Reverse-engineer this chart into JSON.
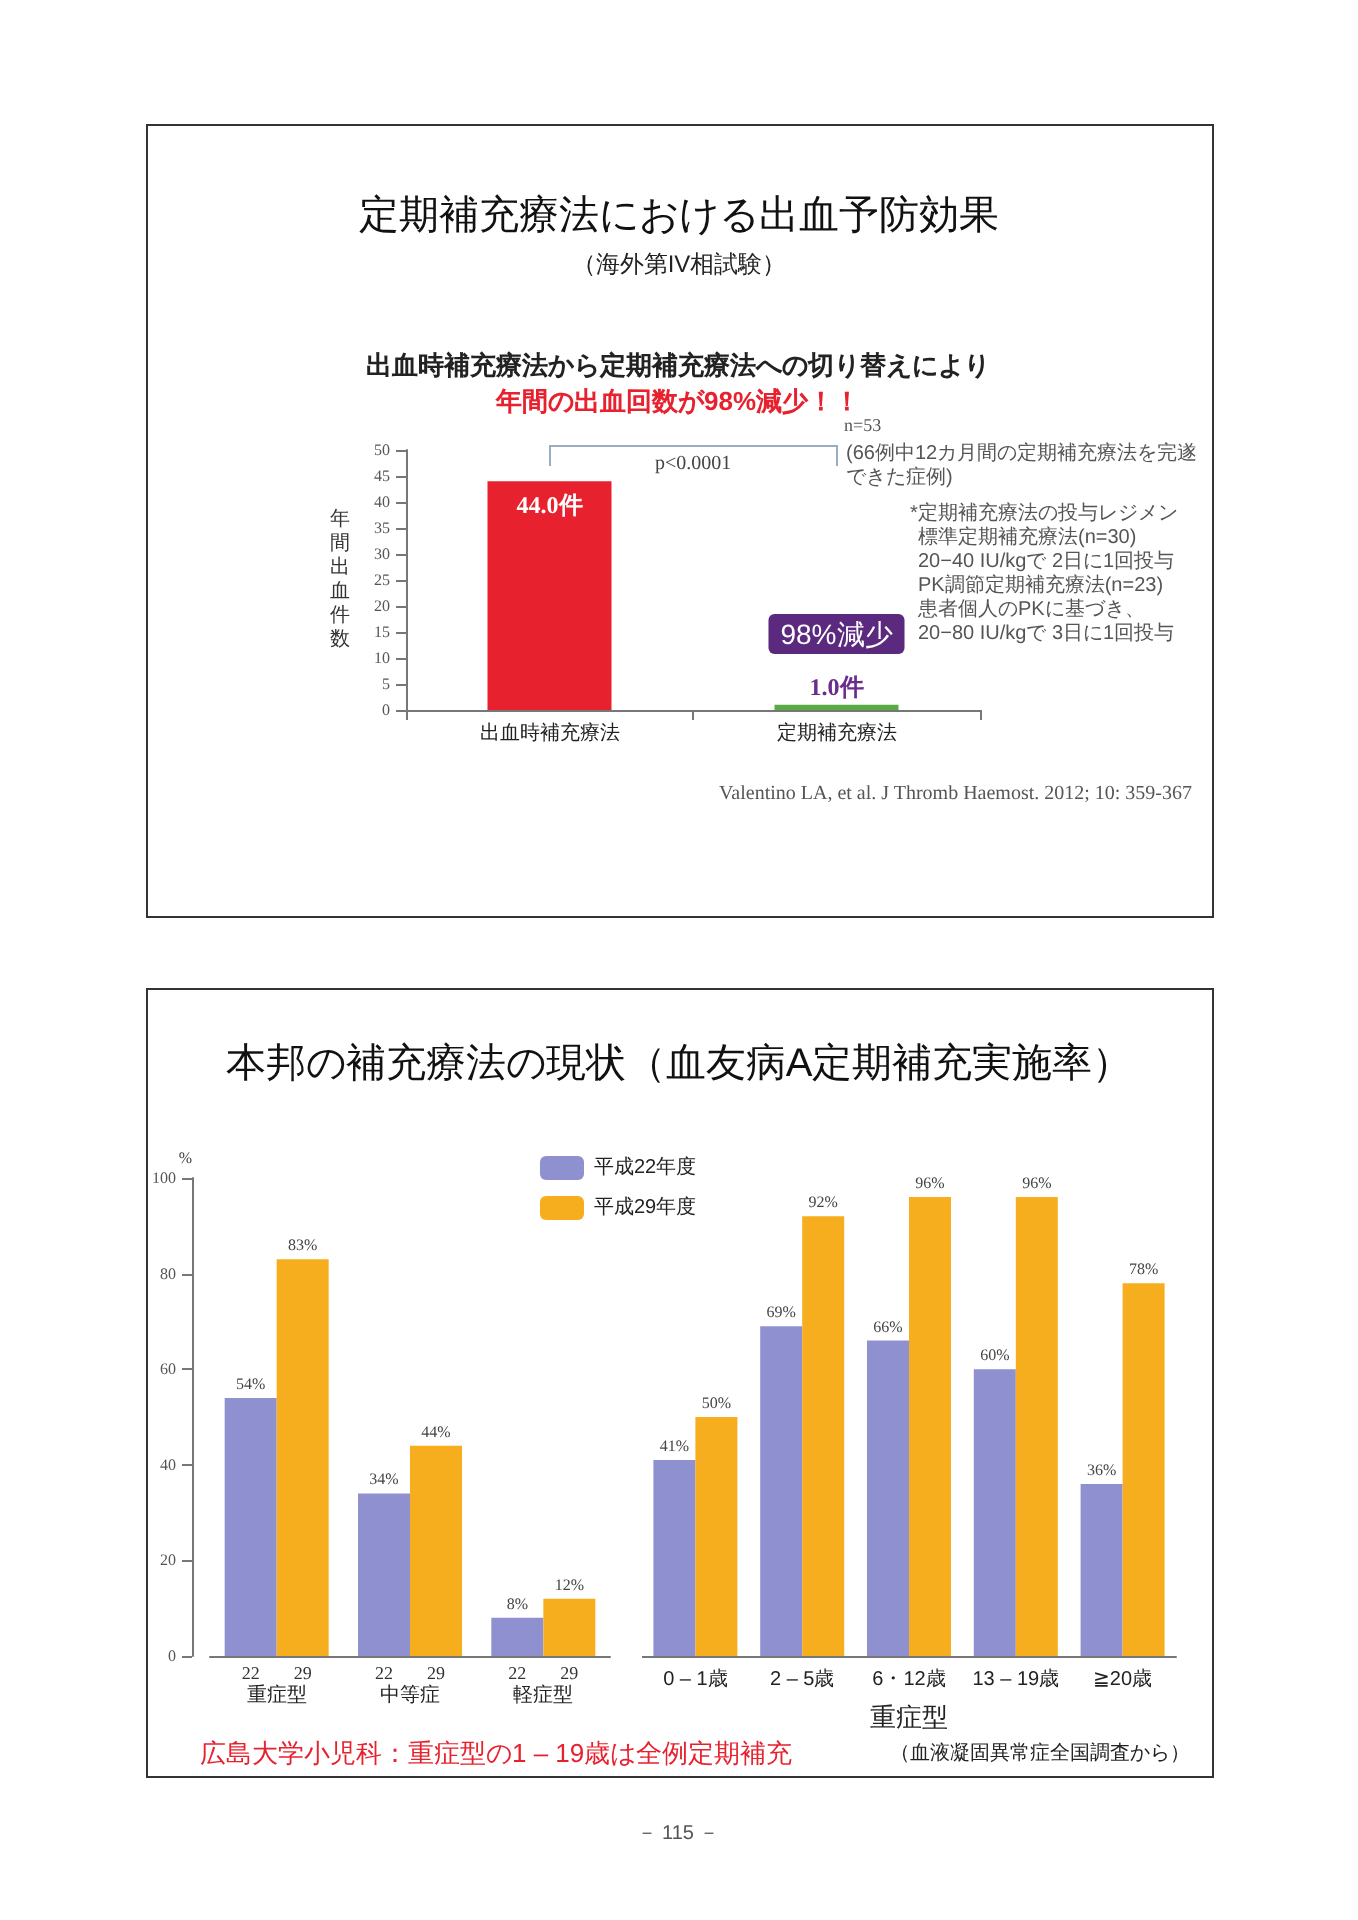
{
  "chart_data": [
    {
      "type": "bar",
      "title": "定期補充療法における出血予防効果",
      "subtitle": "（海外第IV相試験）",
      "ylabel": "年間出血件数",
      "categories": [
        "出血時補充療法",
        "定期補充療法"
      ],
      "values": [
        44.0,
        1.0
      ],
      "colors": [
        "#e8212e",
        "#5aab46"
      ],
      "value_labels": [
        "44.0件",
        "1.0件"
      ],
      "ylim": [
        0,
        50
      ],
      "yticks": [
        0,
        5,
        10,
        15,
        20,
        25,
        30,
        35,
        40,
        45,
        50
      ],
      "grid": false,
      "annotations": [
        "出血時補充療法から定期補充療法への切り替えにより",
        "年間の出血回数が98%減少！！",
        "p<0.0001",
        "n=53",
        "(66例中12カ月間の定期補充療法を完遂できた症例)",
        "*定期補充療法の投与レジメン",
        "標準定期補充療法(n=30)",
        "20−40 IU/kgで 2日に1回投与",
        "PK調節定期補充療法(n=23)",
        "患者個人のPKに基づき、",
        "20−80 IU/kgで 3日に1回投与",
        "98%減少",
        "Valentino LA, et al. J Thromb Haemost. 2012; 10: 359-367"
      ]
    },
    {
      "type": "bar",
      "title": "本邦の補充療法の現状（血友病A定期補充実施率）",
      "ylabel": "%",
      "categories": [
        "重症型",
        "中等症",
        "軽症型"
      ],
      "series": [
        {
          "name": "平成22年度",
          "color": "#8f90cf",
          "values": [
            54,
            34,
            8
          ],
          "value_labels": [
            "54%",
            "34%",
            "8%"
          ]
        },
        {
          "name": "平成29年度",
          "color": "#f6ae1e",
          "values": [
            83,
            44,
            12
          ],
          "value_labels": [
            "83%",
            "44%",
            "12%"
          ]
        }
      ],
      "ylim": [
        0,
        100
      ],
      "yticks": [
        0,
        20,
        40,
        60,
        80,
        100
      ],
      "grid": false,
      "legend": "top",
      "annotations": [
        "22",
        "29",
        "22",
        "29",
        "22",
        "29",
        "広島大学小児科：重症型の1 – 19歳は全例定期補充",
        "（血液凝固異常症全国調査から）",
        "－ 115 －"
      ]
    },
    {
      "type": "bar",
      "xlabel": "重症型",
      "categories": [
        "0 – 1歳",
        "2 – 5歳",
        "6・12歳",
        "13 – 19歳",
        "≧20歳"
      ],
      "series": [
        {
          "color": "#8f90cf",
          "values": [
            41,
            69,
            66,
            60,
            36
          ],
          "value_labels": [
            "41%",
            "69%",
            "66%",
            "60%",
            "36%"
          ]
        },
        {
          "color": "#f6ae1e",
          "values": [
            50,
            92,
            96,
            96,
            78
          ],
          "value_labels": [
            "50%",
            "92%",
            "96%",
            "96%",
            "78%"
          ]
        }
      ],
      "ylim": [
        0,
        100
      ],
      "yticks": [
        0,
        20,
        40,
        60,
        80,
        100
      ],
      "tick_labels": "x",
      "grid": false
    }
  ]
}
